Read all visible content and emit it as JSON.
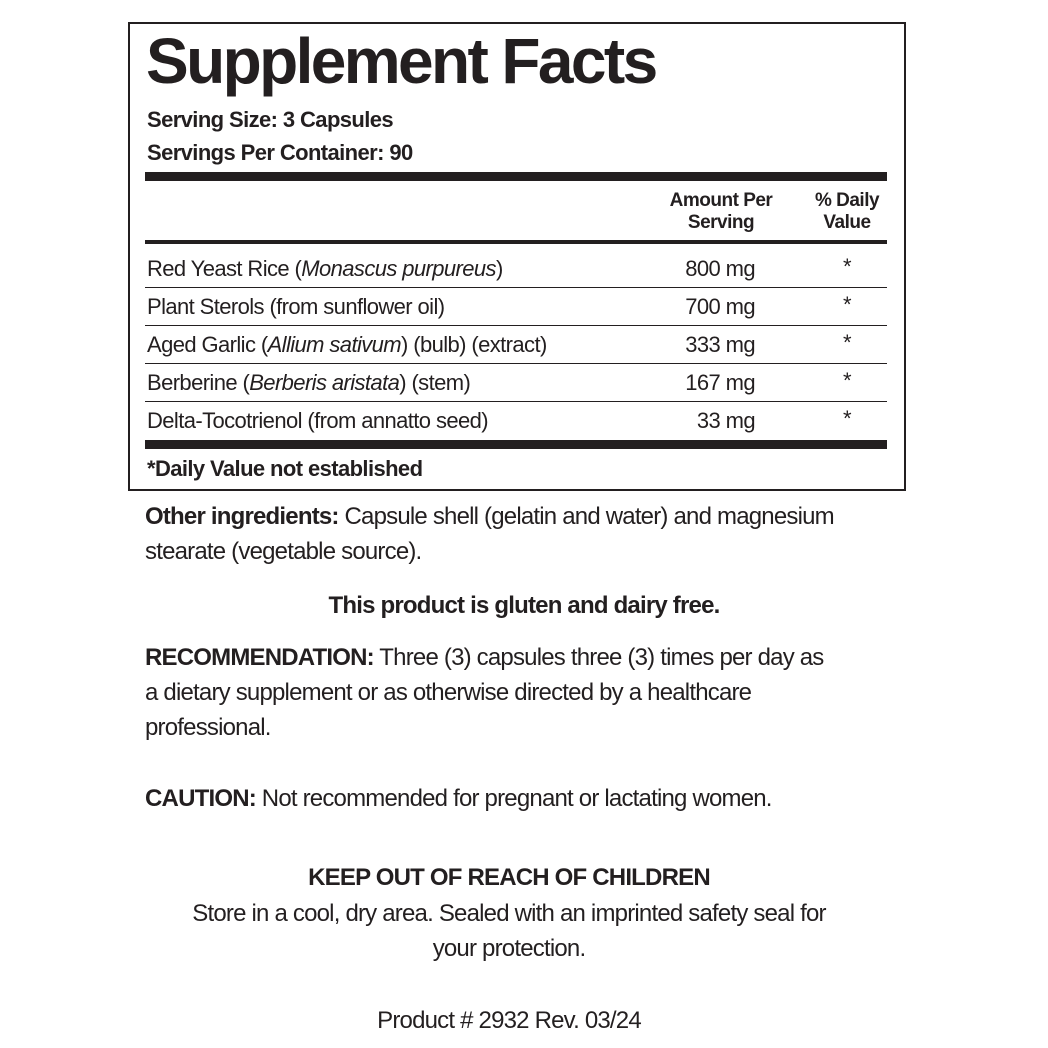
{
  "title": "Supplement Facts",
  "serving_size": "Serving Size: 3 Capsules",
  "servings_per_container": "Servings Per Container: 90",
  "headers": {
    "amount_line1": "Amount Per",
    "amount_line2": "Serving",
    "dv_line1": "% Daily",
    "dv_line2": "Value"
  },
  "rows": [
    {
      "name_pre": "Red Yeast Rice (",
      "name_italic": "Monascus purpureus",
      "name_post": ")",
      "amount": "800 mg",
      "dv": "*"
    },
    {
      "name_pre": "Plant Sterols (from sunflower oil)",
      "name_italic": "",
      "name_post": "",
      "amount": "700 mg",
      "dv": "*"
    },
    {
      "name_pre": "Aged Garlic (",
      "name_italic": "Allium sativum",
      "name_post": ") (bulb) (extract)",
      "amount": "333 mg",
      "dv": "*"
    },
    {
      "name_pre": "Berberine (",
      "name_italic": "Berberis aristata",
      "name_post": ") (stem)",
      "amount": "167 mg",
      "dv": "*"
    },
    {
      "name_pre": "Delta-Tocotrienol (from annatto seed)",
      "name_italic": "",
      "name_post": "",
      "amount": "33 mg",
      "dv": "*"
    }
  ],
  "footnote": "*Daily Value not established",
  "other_ingredients": {
    "label": "Other ingredients:",
    "line1": " Capsule shell (gelatin and water) and magnesium",
    "line2": "stearate (vegetable source)."
  },
  "gluten_free": "This product is gluten and dairy free.",
  "recommendation": {
    "label": "RECOMMENDATION:",
    "line1": " Three (3) capsules three (3) times per day as",
    "line2": "a dietary supplement or as otherwise directed by a healthcare",
    "line3": "professional."
  },
  "caution": {
    "label": "CAUTION:",
    "text": " Not recommended for pregnant or lactating women."
  },
  "keep_out": "KEEP OUT OF REACH OF CHILDREN",
  "storage_line1": "Store in a cool, dry area. Sealed with an imprinted safety seal for",
  "storage_line2": "your protection.",
  "product": "Product # 2932  Rev. 03/24"
}
